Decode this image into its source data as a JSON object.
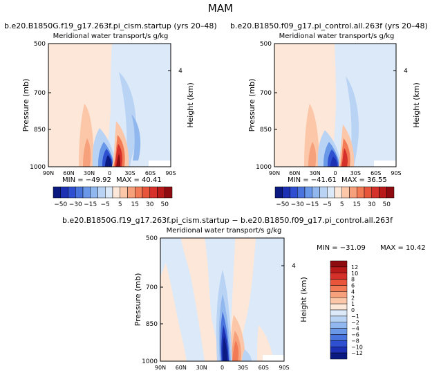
{
  "figure_title": "MAM",
  "colors": {
    "pos": [
      "#fde7d8",
      "#fbc7a8",
      "#f7a17c",
      "#f27b55",
      "#e8553a",
      "#d6302a",
      "#b81a1a",
      "#8e0b0f"
    ],
    "neg": [
      "#dbe9f9",
      "#b9d3f5",
      "#91b7ef",
      "#6a98e8",
      "#4a74dd",
      "#2d4fd0",
      "#1b30b3",
      "#0b1a80"
    ],
    "axis": "#000000"
  },
  "chart_data": [
    {
      "type": "heatmap",
      "id": "top-left",
      "title": "b.e20.B1850G.f19_g17.263f.pi_cism.startup (yrs 20–48)",
      "subtitle": "Meridional water transport/s g/kg",
      "ylabel": "Pressure (mb)",
      "ylabel_right": "Height (km)",
      "xticks": [
        "90N",
        "60N",
        "30N",
        "0",
        "30S",
        "60S",
        "90S"
      ],
      "yticks": [
        "500",
        "700",
        "850",
        "1000"
      ],
      "ylim": [
        1000,
        500
      ],
      "right_ticks": [
        "4"
      ],
      "min_label": "MIN = −49.92",
      "max_label": "MAX =  40.41",
      "min": -49.92,
      "max": 40.41
    },
    {
      "type": "heatmap",
      "id": "top-right",
      "title": "b.e20.B1850.f09_g17.pi_control.all.263f (yrs 20–48)",
      "subtitle": "Meridional water transport/s g/kg",
      "ylabel": "Pressure (mb)",
      "ylabel_right": "Height (km)",
      "xticks": [
        "90N",
        "60N",
        "30N",
        "0",
        "30S",
        "60S",
        "90S"
      ],
      "yticks": [
        "500",
        "700",
        "850",
        "1000"
      ],
      "ylim": [
        1000,
        500
      ],
      "right_ticks": [
        "4"
      ],
      "min_label": "MIN = −41.61",
      "max_label": "MAX =  36.55",
      "min": -41.61,
      "max": 36.55
    },
    {
      "type": "heatmap",
      "id": "bottom",
      "title": "b.e20.B1850G.f19_g17.263f.pi_cism.startup − b.e20.B1850.f09_g17.pi_control.all.263f",
      "subtitle": "Meridional water transport/s g/kg",
      "ylabel": "Pressure (mb)",
      "ylabel_right": "Height (km)",
      "xticks": [
        "90N",
        "60N",
        "30N",
        "0",
        "30S",
        "60S",
        "90S"
      ],
      "yticks": [
        "500",
        "700",
        "850",
        "1000"
      ],
      "ylim": [
        1000,
        500
      ],
      "right_ticks": [
        "4"
      ],
      "min_label": "MIN = −31.09",
      "max_label": "MAX =  10.42",
      "min": -31.09,
      "max": 10.42
    }
  ],
  "colorbars": {
    "top": {
      "labels": [
        "−50",
        "−30",
        "−15",
        "−5",
        "5",
        "15",
        "30",
        "50"
      ],
      "levels": [
        -50,
        -40,
        -30,
        -20,
        -15,
        -10,
        -5,
        0,
        5,
        10,
        15,
        20,
        30,
        40,
        50
      ]
    },
    "bottom": {
      "labels": [
        "12",
        "10",
        "8",
        "6",
        "4",
        "2",
        "1",
        "0",
        "−1",
        "−2",
        "−4",
        "−6",
        "−8",
        "−10",
        "−12"
      ]
    }
  }
}
